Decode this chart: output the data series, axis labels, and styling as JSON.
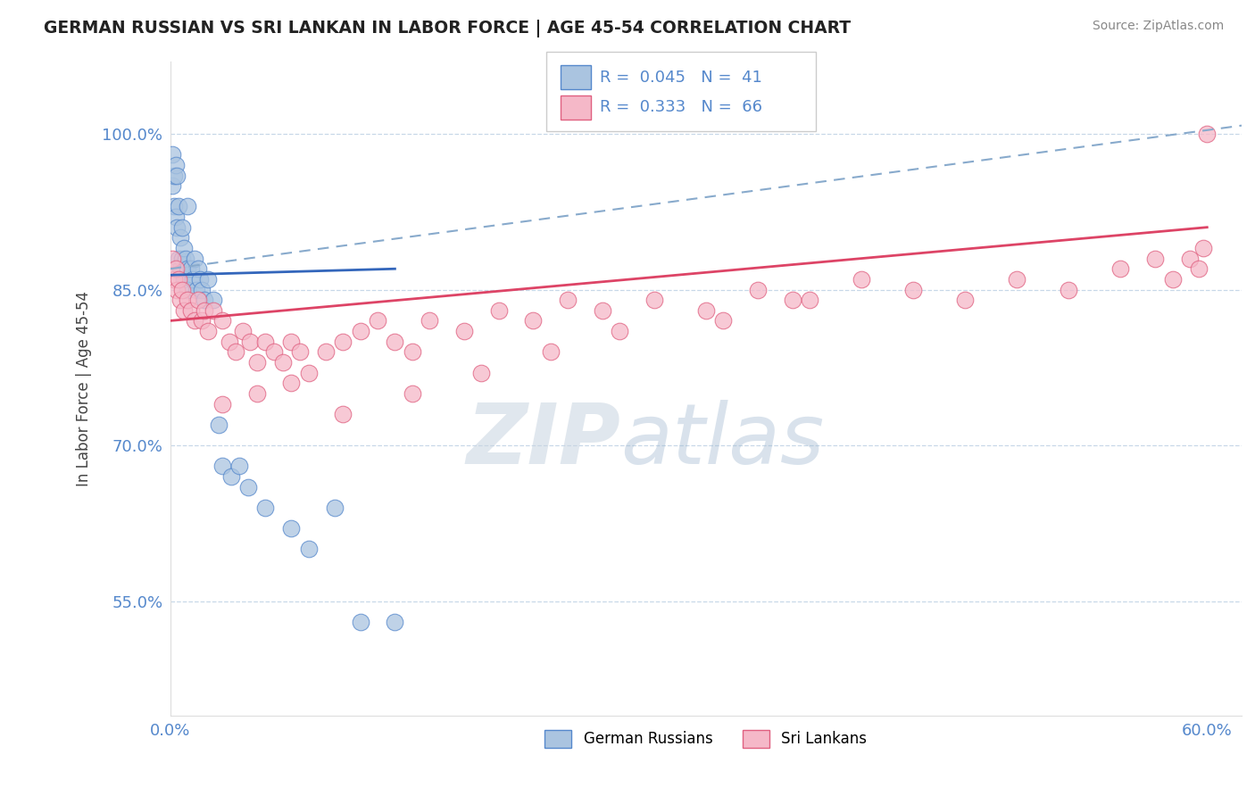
{
  "title": "GERMAN RUSSIAN VS SRI LANKAN IN LABOR FORCE | AGE 45-54 CORRELATION CHART",
  "source": "Source: ZipAtlas.com",
  "ylabel": "In Labor Force | Age 45-54",
  "xlim": [
    0.0,
    0.62
  ],
  "ylim": [
    0.44,
    1.07
  ],
  "x_tick_labels": [
    "0.0%",
    "60.0%"
  ],
  "x_ticks": [
    0.0,
    0.6
  ],
  "y_ticks": [
    0.55,
    0.7,
    0.85,
    1.0
  ],
  "y_tick_labels": [
    "55.0%",
    "70.0%",
    "85.0%",
    "100.0%"
  ],
  "watermark_zip": "ZIP",
  "watermark_atlas": "atlas",
  "legend_r1": "0.045",
  "legend_n1": "41",
  "legend_r2": "0.333",
  "legend_n2": "66",
  "blue_fill": "#aac4e0",
  "blue_edge": "#5588cc",
  "pink_fill": "#f5b8c8",
  "pink_edge": "#e06080",
  "blue_line_color": "#3366bb",
  "pink_line_color": "#dd4466",
  "dash_line_color": "#88aacc",
  "grid_color": "#c8d8e8",
  "tick_color": "#5588cc",
  "title_color": "#222222",
  "source_color": "#888888",
  "ylabel_color": "#444444",
  "gr_x": [
    0.001,
    0.001,
    0.002,
    0.002,
    0.003,
    0.003,
    0.004,
    0.004,
    0.005,
    0.005,
    0.006,
    0.006,
    0.007,
    0.007,
    0.008,
    0.008,
    0.009,
    0.01,
    0.01,
    0.01,
    0.012,
    0.013,
    0.014,
    0.015,
    0.016,
    0.017,
    0.018,
    0.02,
    0.022,
    0.025,
    0.028,
    0.03,
    0.035,
    0.04,
    0.045,
    0.055,
    0.07,
    0.08,
    0.095,
    0.11,
    0.13
  ],
  "gr_y": [
    0.98,
    0.95,
    0.96,
    0.93,
    0.97,
    0.92,
    0.96,
    0.91,
    0.93,
    0.88,
    0.9,
    0.87,
    0.91,
    0.88,
    0.89,
    0.86,
    0.88,
    0.93,
    0.87,
    0.85,
    0.87,
    0.86,
    0.88,
    0.85,
    0.87,
    0.86,
    0.85,
    0.84,
    0.86,
    0.84,
    0.72,
    0.68,
    0.67,
    0.68,
    0.66,
    0.64,
    0.62,
    0.6,
    0.64,
    0.53,
    0.53
  ],
  "sl_x": [
    0.001,
    0.002,
    0.003,
    0.004,
    0.005,
    0.006,
    0.007,
    0.008,
    0.01,
    0.012,
    0.014,
    0.016,
    0.018,
    0.02,
    0.022,
    0.025,
    0.03,
    0.034,
    0.038,
    0.042,
    0.046,
    0.05,
    0.055,
    0.06,
    0.065,
    0.07,
    0.075,
    0.08,
    0.09,
    0.1,
    0.11,
    0.12,
    0.13,
    0.14,
    0.15,
    0.17,
    0.19,
    0.21,
    0.23,
    0.25,
    0.28,
    0.31,
    0.34,
    0.37,
    0.4,
    0.43,
    0.46,
    0.49,
    0.52,
    0.55,
    0.57,
    0.58,
    0.59,
    0.595,
    0.598,
    0.6,
    0.32,
    0.36,
    0.26,
    0.22,
    0.18,
    0.14,
    0.1,
    0.07,
    0.05,
    0.03
  ],
  "sl_y": [
    0.88,
    0.86,
    0.87,
    0.85,
    0.86,
    0.84,
    0.85,
    0.83,
    0.84,
    0.83,
    0.82,
    0.84,
    0.82,
    0.83,
    0.81,
    0.83,
    0.82,
    0.8,
    0.79,
    0.81,
    0.8,
    0.78,
    0.8,
    0.79,
    0.78,
    0.8,
    0.79,
    0.77,
    0.79,
    0.8,
    0.81,
    0.82,
    0.8,
    0.79,
    0.82,
    0.81,
    0.83,
    0.82,
    0.84,
    0.83,
    0.84,
    0.83,
    0.85,
    0.84,
    0.86,
    0.85,
    0.84,
    0.86,
    0.85,
    0.87,
    0.88,
    0.86,
    0.88,
    0.87,
    0.89,
    1.0,
    0.82,
    0.84,
    0.81,
    0.79,
    0.77,
    0.75,
    0.73,
    0.76,
    0.75,
    0.74
  ]
}
